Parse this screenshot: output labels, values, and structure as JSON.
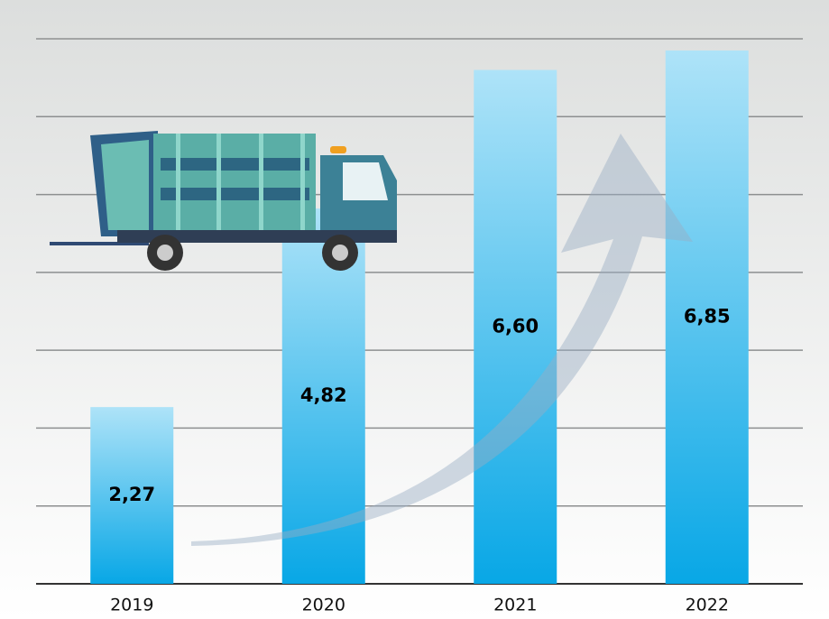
{
  "chart_data": {
    "type": "bar",
    "categories": [
      "2019",
      "2020",
      "2021",
      "2022"
    ],
    "values": [
      2.27,
      4.82,
      6.6,
      6.85
    ],
    "value_labels": [
      "2,27",
      "4,82",
      "6,60",
      "6,85"
    ],
    "ylim": [
      0,
      7
    ],
    "yticks": [
      0,
      1,
      2,
      3,
      4,
      5,
      6,
      7
    ],
    "grid": true
  }
}
